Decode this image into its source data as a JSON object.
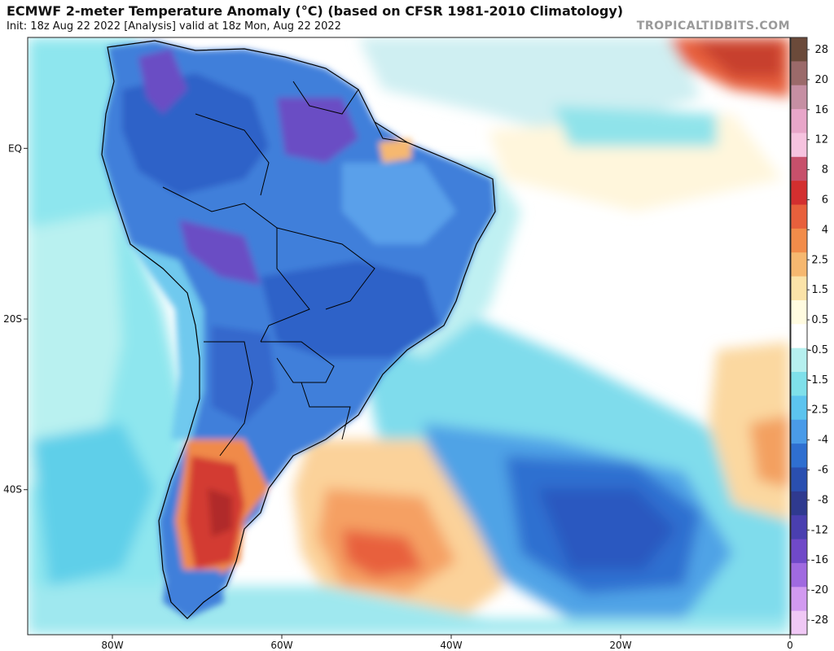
{
  "header": {
    "title": "ECMWF 2-meter Temperature Anomaly (°C) (based on CFSR 1981-2010 Climatology)",
    "subtitle": "Init: 18z Aug 22 2022   [Analysis]   valid at 18z Mon, Aug 22 2022",
    "source": "TROPICALTIDBITS.COM"
  },
  "map": {
    "region": "South America and South Atlantic",
    "lon_range": [
      -90,
      0
    ],
    "lat_range": [
      13,
      -57
    ],
    "lat_ticks": [
      {
        "value": 0,
        "label": "EQ"
      },
      {
        "value": -20,
        "label": "20S"
      },
      {
        "value": -40,
        "label": "40S"
      }
    ],
    "lon_ticks": [
      {
        "value": -80,
        "label": "80W"
      },
      {
        "value": -60,
        "label": "60W"
      },
      {
        "value": -40,
        "label": "40W"
      },
      {
        "value": -20,
        "label": "20W"
      },
      {
        "value": 0,
        "label": "0"
      }
    ]
  },
  "colorbar": {
    "labels": [
      "28",
      "20",
      "16",
      "12",
      "8",
      "6",
      "4",
      "2.5",
      "1.5",
      "0.5",
      "-0.5",
      "-1.5",
      "-2.5",
      "-4",
      "-6",
      "-8",
      "-12",
      "-16",
      "-20",
      "-28"
    ],
    "colors": [
      "#6b4a3a",
      "#9b6a6a",
      "#c68fa3",
      "#e8a6c9",
      "#f6c3df",
      "#c7506b",
      "#d32f2f",
      "#e8603c",
      "#f28c4a",
      "#f6b870",
      "#fbe3a8",
      "#fffbe0",
      "#ffffff",
      "#b6f0ef",
      "#7fe0ea",
      "#5cc4ef",
      "#4a9be8",
      "#2f6fd0",
      "#2a4fb0",
      "#2f3a8f",
      "#4a3fb0",
      "#7049c8",
      "#a06ae0",
      "#d29af0",
      "#f0c8f5"
    ]
  }
}
